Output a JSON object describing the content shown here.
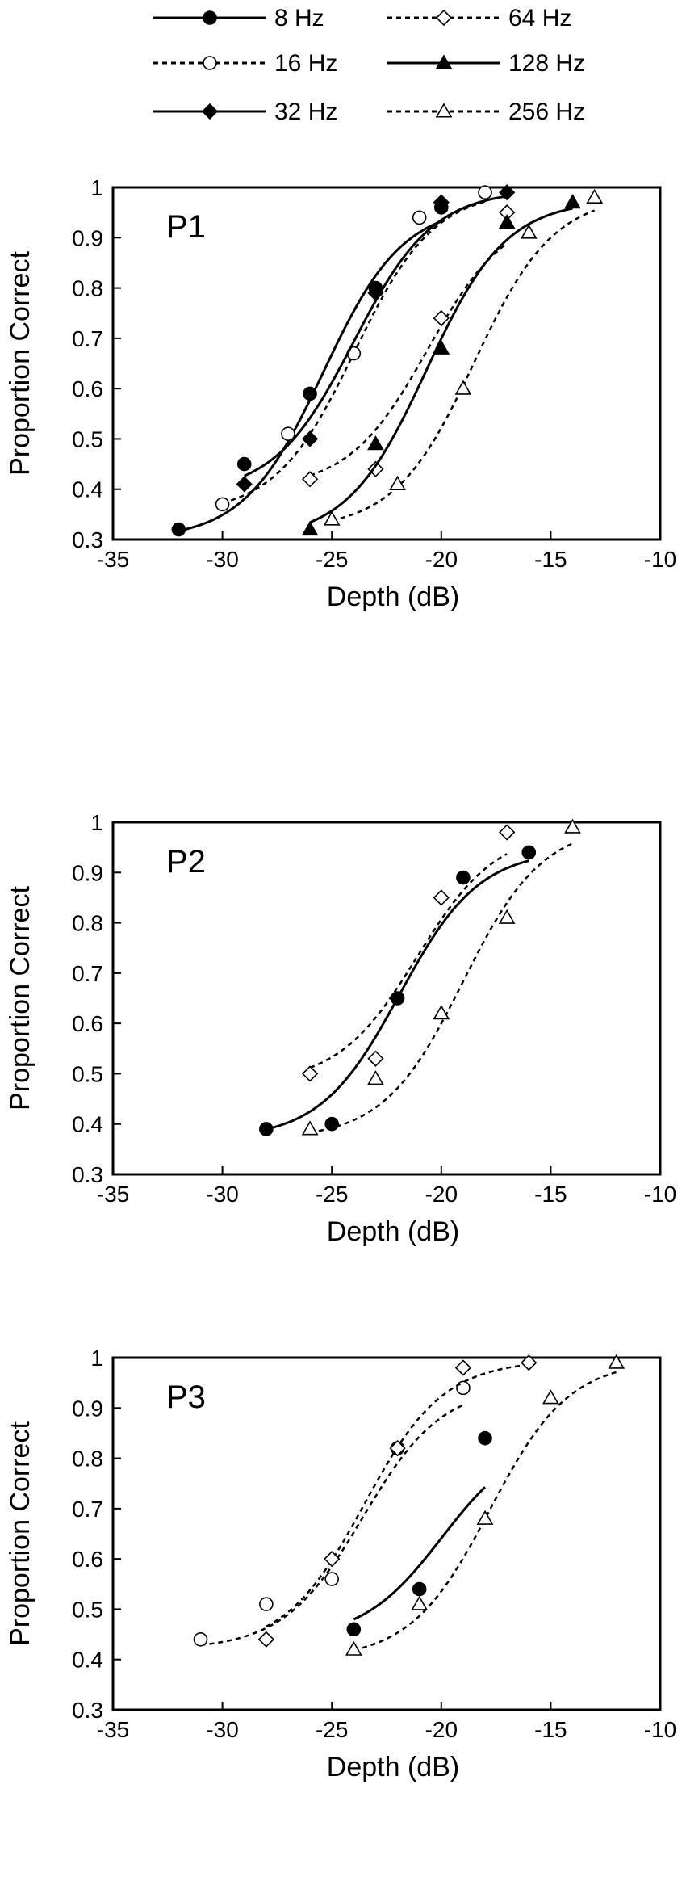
{
  "legend": [
    {
      "label": "8 Hz",
      "marker": "circle",
      "fill": "filled",
      "dash": "solid"
    },
    {
      "label": "64 Hz",
      "marker": "diamond",
      "fill": "open",
      "dash": "dotted"
    },
    {
      "label": "16 Hz",
      "marker": "circle",
      "fill": "open",
      "dash": "dotted"
    },
    {
      "label": "128 Hz",
      "marker": "triangle",
      "fill": "filled",
      "dash": "solid"
    },
    {
      "label": "32 Hz",
      "marker": "diamond",
      "fill": "filled",
      "dash": "solid"
    },
    {
      "label": "256 Hz",
      "marker": "triangle",
      "fill": "open",
      "dash": "dotted"
    }
  ],
  "chart_data": [
    {
      "type": "scatter",
      "panel_label": "P1",
      "xlabel": "Depth (dB)",
      "ylabel": "Proportion Correct",
      "xlim": [
        -35,
        -10
      ],
      "ylim": [
        0.3,
        1
      ],
      "xticks": [
        -35,
        -30,
        -25,
        -20,
        -15,
        -10
      ],
      "yticks": [
        0.3,
        0.4,
        0.5,
        0.6,
        0.7,
        0.8,
        0.9,
        1
      ],
      "grid": false,
      "series": [
        {
          "name": "8 Hz",
          "x": [
            -32,
            -29,
            -26,
            -23,
            -20
          ],
          "y": [
            0.32,
            0.45,
            0.59,
            0.8,
            0.96
          ]
        },
        {
          "name": "16 Hz",
          "x": [
            -30,
            -27,
            -24,
            -21,
            -18
          ],
          "y": [
            0.37,
            0.51,
            0.67,
            0.94,
            0.99
          ]
        },
        {
          "name": "32 Hz",
          "x": [
            -29,
            -26,
            -23,
            -20,
            -17
          ],
          "y": [
            0.41,
            0.5,
            0.79,
            0.97,
            0.99
          ]
        },
        {
          "name": "64 Hz",
          "x": [
            -26,
            -23,
            -20,
            -17
          ],
          "y": [
            0.42,
            0.44,
            0.74,
            0.95
          ]
        },
        {
          "name": "128 Hz",
          "x": [
            -26,
            -23,
            -20,
            -17,
            -14
          ],
          "y": [
            0.32,
            0.49,
            0.68,
            0.93,
            0.97
          ]
        },
        {
          "name": "256 Hz",
          "x": [
            -25,
            -22,
            -19,
            -16,
            -13
          ],
          "y": [
            0.34,
            0.41,
            0.6,
            0.91,
            0.98
          ]
        }
      ]
    },
    {
      "type": "scatter",
      "panel_label": "P2",
      "xlabel": "Depth (dB)",
      "ylabel": "Proportion Correct",
      "xlim": [
        -35,
        -10
      ],
      "ylim": [
        0.3,
        1
      ],
      "xticks": [
        -35,
        -30,
        -25,
        -20,
        -15,
        -10
      ],
      "yticks": [
        0.3,
        0.4,
        0.5,
        0.6,
        0.7,
        0.8,
        0.9,
        1
      ],
      "grid": false,
      "series": [
        {
          "name": "8 Hz",
          "x": [
            -28,
            -25,
            -22,
            -19,
            -16
          ],
          "y": [
            0.39,
            0.4,
            0.65,
            0.89,
            0.94
          ]
        },
        {
          "name": "64 Hz",
          "x": [
            -26,
            -23,
            -20,
            -17
          ],
          "y": [
            0.5,
            0.53,
            0.85,
            0.98
          ]
        },
        {
          "name": "256 Hz",
          "x": [
            -26,
            -23,
            -20,
            -17,
            -14
          ],
          "y": [
            0.39,
            0.49,
            0.62,
            0.81,
            0.99
          ]
        }
      ]
    },
    {
      "type": "scatter",
      "panel_label": "P3",
      "xlabel": "Depth (dB)",
      "ylabel": "Proportion Correct",
      "xlim": [
        -35,
        -10
      ],
      "ylim": [
        0.3,
        1
      ],
      "xticks": [
        -35,
        -30,
        -25,
        -20,
        -15,
        -10
      ],
      "yticks": [
        0.3,
        0.4,
        0.5,
        0.6,
        0.7,
        0.8,
        0.9,
        1
      ],
      "grid": false,
      "series": [
        {
          "name": "8 Hz",
          "x": [
            -24,
            -21,
            -18
          ],
          "y": [
            0.46,
            0.54,
            0.84
          ]
        },
        {
          "name": "16 Hz",
          "x": [
            -31,
            -28,
            -25,
            -22,
            -19
          ],
          "y": [
            0.44,
            0.51,
            0.56,
            0.82,
            0.94
          ]
        },
        {
          "name": "64 Hz",
          "x": [
            -28,
            -25,
            -22,
            -19,
            -16
          ],
          "y": [
            0.44,
            0.6,
            0.82,
            0.98,
            0.99
          ]
        },
        {
          "name": "256 Hz",
          "x": [
            -24,
            -21,
            -18,
            -15,
            -12
          ],
          "y": [
            0.42,
            0.51,
            0.68,
            0.92,
            0.99
          ]
        }
      ]
    }
  ]
}
